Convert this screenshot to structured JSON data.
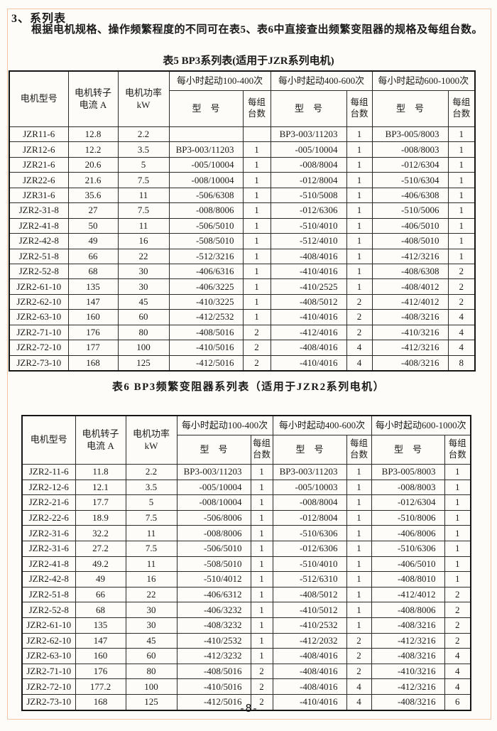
{
  "page": {
    "section_title": "3、系列表",
    "intro": "根据电机规格、操作频繁程度的不同可在表5、表6中直接查出频繁变阻器的规格及每组台数。",
    "footer": "-8-"
  },
  "header_labels": {
    "motor_model": "电机型号",
    "rotor_current": "电机转子\n电流  A",
    "motor_power": "电机功率\nkW",
    "group1": "每小时起动100-400次",
    "group2": "每小时起动400-600次",
    "group3": "每小时起动600-1000次",
    "model": "型　号",
    "units_per_group": "每组\n台数"
  },
  "table5": {
    "caption": "表5 BP3系列表(适用于JZR系列电机)",
    "rows": [
      [
        "JZR11-6",
        "12.8",
        "2.2",
        "",
        "",
        "BP3-003/11203",
        "1",
        "BP3-005/8003",
        "1"
      ],
      [
        "JZR12-6",
        "12.2",
        "3.5",
        "BP3-003/11203",
        "1",
        "-005/10004",
        "1",
        "-008/8003",
        "1"
      ],
      [
        "JZR21-6",
        "20.6",
        "5",
        "-005/10004",
        "1",
        "-008/8004",
        "1",
        "-012/6304",
        "1"
      ],
      [
        "JZR22-6",
        "21.6",
        "7.5",
        "-008/10004",
        "1",
        "-012/8004",
        "1",
        "-510/6304",
        "1"
      ],
      [
        "JZR31-6",
        "35.6",
        "11",
        "-506/6308",
        "1",
        "-510/5008",
        "1",
        "-406/6308",
        "1"
      ],
      [
        "JZR2-31-8",
        "27",
        "7.5",
        "-008/8006",
        "1",
        "-012/6306",
        "1",
        "-510/5006",
        "1"
      ],
      [
        "JZR2-41-8",
        "50",
        "11",
        "-506/5010",
        "1",
        "-510/4010",
        "1",
        "-406/5010",
        "1"
      ],
      [
        "JZR2-42-8",
        "49",
        "16",
        "-508/5010",
        "1",
        "-512/4010",
        "1",
        "-408/5010",
        "1"
      ],
      [
        "JZR2-51-8",
        "66",
        "22",
        "-512/3216",
        "1",
        "-408/4016",
        "1",
        "-412/3216",
        "1"
      ],
      [
        "JZR2-52-8",
        "68",
        "30",
        "-406/6316",
        "1",
        "-410/4016",
        "1",
        "-408/6308",
        "2"
      ],
      [
        "JZR2-61-10",
        "135",
        "30",
        "-406/3225",
        "1",
        "-410/2525",
        "1",
        "-408/4012",
        "2"
      ],
      [
        "JZR2-62-10",
        "147",
        "45",
        "-410/3225",
        "1",
        "-408/5012",
        "2",
        "-412/4012",
        "2"
      ],
      [
        "JZR2-63-10",
        "160",
        "60",
        "-412/2532",
        "1",
        "-410/4016",
        "2",
        "-408/3216",
        "4"
      ],
      [
        "JZR2-71-10",
        "176",
        "80",
        "-408/5016",
        "2",
        "-412/4016",
        "2",
        "-410/3216",
        "4"
      ],
      [
        "JZR2-72-10",
        "177",
        "100",
        "-410/5016",
        "2",
        "-408/4016",
        "4",
        "-412/3216",
        "4"
      ],
      [
        "JZR2-73-10",
        "168",
        "125",
        "-412/5016",
        "2",
        "-410/4016",
        "4",
        "-408/3216",
        "8"
      ]
    ]
  },
  "table6": {
    "caption": "表6 BP3频繁变阻器系列表（适用于JZR2系列电机）",
    "rows": [
      [
        "JZR2-11-6",
        "11.8",
        "2.2",
        "BP3-003/11203",
        "1",
        "BP3-003/11203",
        "1",
        "BP3-005/8003",
        "1"
      ],
      [
        "JZR2-12-6",
        "12.1",
        "3.5",
        "-005/10004",
        "1",
        "-005/10003",
        "1",
        "-008/8003",
        "1"
      ],
      [
        "JZR2-21-6",
        "17.7",
        "5",
        "-008/10004",
        "1",
        "-008/8004",
        "1",
        "-012/6304",
        "1"
      ],
      [
        "JZR2-22-6",
        "18.9",
        "7.5",
        "-506/8006",
        "1",
        "-012/8004",
        "1",
        "-510/8006",
        "1"
      ],
      [
        "JZR2-31-6",
        "32.2",
        "11",
        "-008/8006",
        "1",
        "-510/6306",
        "1",
        "-406/8006",
        "1"
      ],
      [
        "JZR2-31-6",
        "27.2",
        "7.5",
        "-506/5010",
        "1",
        "-012/6306",
        "1",
        "-510/6306",
        "1"
      ],
      [
        "JZR2-41-8",
        "49.2",
        "11",
        "-508/5010",
        "1",
        "-510/4010",
        "1",
        "-406/5010",
        "1"
      ],
      [
        "JZR2-42-8",
        "49",
        "16",
        "-510/4012",
        "1",
        "-512/6310",
        "1",
        "-408/8010",
        "1"
      ],
      [
        "JZR2-51-8",
        "66",
        "22",
        "-406/6312",
        "1",
        "-408/5012",
        "1",
        "-412/4012",
        "2"
      ],
      [
        "JZR2-52-8",
        "68",
        "30",
        "-406/3232",
        "1",
        "-410/5012",
        "1",
        "-408/8006",
        "2"
      ],
      [
        "JZR2-61-10",
        "135",
        "30",
        "-408/3232",
        "1",
        "-410/2532",
        "1",
        "-408/3216",
        "2"
      ],
      [
        "JZR2-62-10",
        "147",
        "45",
        "-410/2532",
        "1",
        "-412/2032",
        "2",
        "-412/3216",
        "2"
      ],
      [
        "JZR2-63-10",
        "160",
        "60",
        "-412/3232",
        "1",
        "-408/4016",
        "2",
        "-408/3216",
        "4"
      ],
      [
        "JZR2-71-10",
        "176",
        "80",
        "-408/5016",
        "2",
        "-408/4016",
        "2",
        "-410/3216",
        "4"
      ],
      [
        "JZR2-72-10",
        "177.2",
        "100",
        "-410/5016",
        "2",
        "-408/4016",
        "4",
        "-412/3216",
        "4"
      ],
      [
        "JZR2-73-10",
        "168",
        "125",
        "-412/5016",
        "2",
        "-410/4016",
        "4",
        "-408/3216",
        "6"
      ]
    ]
  }
}
